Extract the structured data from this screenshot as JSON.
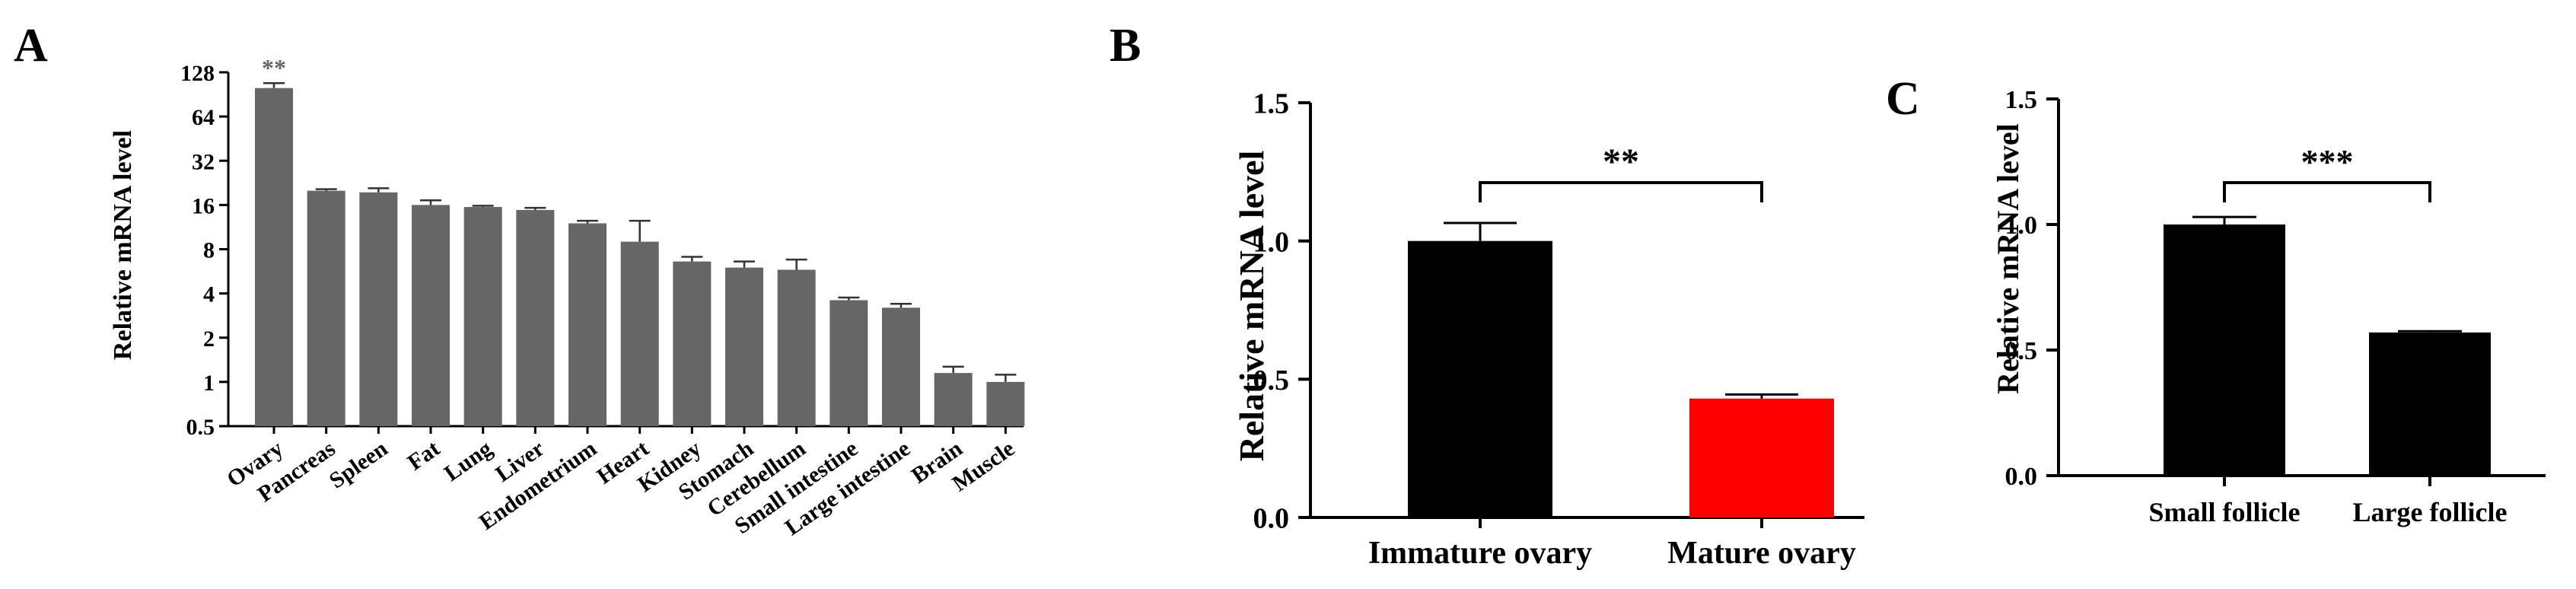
{
  "chart_data": [
    {
      "panel_label": "A",
      "type": "bar",
      "ylabel": "Relative mRNA level",
      "yscale": "log2",
      "ylim": [
        0.5,
        128
      ],
      "yticks": [
        "0.5",
        "1",
        "2",
        "4",
        "8",
        "16",
        "32",
        "64",
        "128"
      ],
      "categories": [
        "Ovary",
        "Pancreas",
        "Spleen",
        "Fat",
        "Lung",
        "Liver",
        "Endometrium",
        "Heart",
        "Kidney",
        "Stomach",
        "Cerebellum",
        "Small intestine",
        "Large intestine",
        "Brain",
        "Muscle"
      ],
      "values": [
        100,
        20,
        19.5,
        16,
        15.5,
        14.8,
        12,
        9,
        6.6,
        6,
        5.8,
        3.6,
        3.2,
        1.15,
        1
      ],
      "errors": [
        8,
        0.5,
        1.3,
        1.2,
        0.3,
        0.5,
        0.5,
        3.5,
        0.5,
        0.6,
        1.0,
        0.15,
        0.2,
        0.12,
        0.12
      ],
      "annotations": [
        {
          "category": "Ovary",
          "text": "**"
        }
      ],
      "bar_color": "#666666"
    },
    {
      "panel_label": "B",
      "type": "bar",
      "ylabel": "Relative mRNA level",
      "ylim": [
        0,
        1.5
      ],
      "yticks": [
        "0.0",
        "0.5",
        "1.0",
        "1.5"
      ],
      "categories": [
        "Immature ovary",
        "Mature ovary"
      ],
      "values": [
        1.0,
        0.43
      ],
      "errors": [
        0.065,
        0.015
      ],
      "bar_colors": [
        "#000000",
        "#ff0000"
      ],
      "significance": "**"
    },
    {
      "panel_label": "C",
      "type": "bar",
      "ylabel": "Relative mRNA level",
      "ylim": [
        0,
        1.5
      ],
      "yticks": [
        "0.0",
        "0.5",
        "1.0",
        "1.5"
      ],
      "categories": [
        "Small follicle",
        "Large follicle"
      ],
      "values": [
        1.0,
        0.57
      ],
      "errors": [
        0.03,
        0.005
      ],
      "bar_colors": [
        "#000000",
        "#000000"
      ],
      "significance": "***"
    }
  ]
}
